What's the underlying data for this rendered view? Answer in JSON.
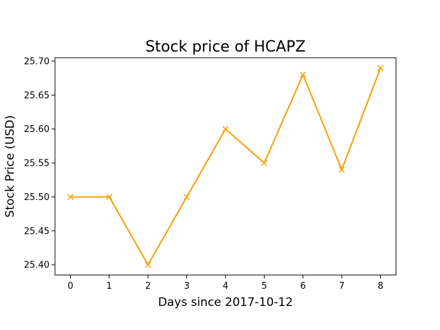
{
  "chart_data": {
    "type": "line",
    "title": "Stock price of HCAPZ",
    "xlabel": "Days since 2017-10-12",
    "ylabel": "Stock Price (USD)",
    "x": [
      0,
      1,
      2,
      3,
      4,
      5,
      6,
      7,
      8
    ],
    "y": [
      25.5,
      25.5,
      25.4,
      25.5,
      25.6,
      25.55,
      25.68,
      25.54,
      25.69
    ],
    "xlim": [
      -0.4,
      8.4
    ],
    "ylim": [
      25.385,
      25.705
    ],
    "xticks": [
      "0",
      "1",
      "2",
      "3",
      "4",
      "5",
      "6",
      "7",
      "8"
    ],
    "yticks": [
      "25.40",
      "25.45",
      "25.50",
      "25.55",
      "25.60",
      "25.65",
      "25.70"
    ],
    "grid": false,
    "line_color": "#f5a612",
    "marker": "x"
  }
}
